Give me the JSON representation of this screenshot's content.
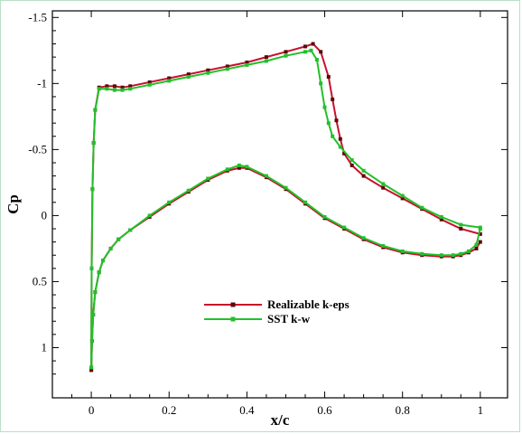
{
  "chart_data": {
    "type": "line",
    "xlabel": "x/c",
    "ylabel": "Cp",
    "xlim": [
      -0.1,
      1.07
    ],
    "ylim": [
      -1.55,
      1.38
    ],
    "y_inverted": true,
    "grid": false,
    "legend_position": "lower-center",
    "x_ticks": [
      0,
      0.2,
      0.4,
      0.6,
      0.8,
      1
    ],
    "x_tick_labels": [
      "0",
      "0.2",
      "0.4",
      "0.6",
      "0.8",
      "1"
    ],
    "y_ticks": [
      -1.5,
      -1,
      -0.5,
      0,
      0.5,
      1
    ],
    "y_tick_labels": [
      "-1.5",
      "-1",
      "-0.5",
      "0",
      "0.5",
      "1"
    ],
    "series": [
      {
        "name": "Realizable k-eps",
        "color": "#c8102e",
        "marker_color": "#5a0a0a",
        "upper": {
          "x": [
            0,
            0.001,
            0.003,
            0.006,
            0.01,
            0.02,
            0.04,
            0.06,
            0.08,
            0.1,
            0.15,
            0.2,
            0.25,
            0.3,
            0.35,
            0.4,
            0.45,
            0.5,
            0.55,
            0.57,
            0.59,
            0.61,
            0.62,
            0.63,
            0.64,
            0.65,
            0.67,
            0.7,
            0.75,
            0.8,
            0.85,
            0.9,
            0.95,
            1.0
          ],
          "y": [
            1.17,
            0.4,
            -0.2,
            -0.55,
            -0.8,
            -0.97,
            -0.98,
            -0.98,
            -0.97,
            -0.98,
            -1.01,
            -1.04,
            -1.07,
            -1.1,
            -1.13,
            -1.16,
            -1.2,
            -1.24,
            -1.28,
            -1.3,
            -1.24,
            -1.05,
            -0.88,
            -0.72,
            -0.58,
            -0.47,
            -0.38,
            -0.3,
            -0.21,
            -0.13,
            -0.05,
            0.03,
            0.1,
            0.14
          ]
        },
        "lower": {
          "x": [
            0,
            0.002,
            0.005,
            0.01,
            0.02,
            0.03,
            0.05,
            0.07,
            0.1,
            0.15,
            0.2,
            0.25,
            0.3,
            0.35,
            0.38,
            0.4,
            0.45,
            0.5,
            0.55,
            0.6,
            0.65,
            0.7,
            0.75,
            0.8,
            0.85,
            0.9,
            0.93,
            0.95,
            0.97,
            0.99,
            1.0
          ],
          "y": [
            1.17,
            0.95,
            0.75,
            0.58,
            0.43,
            0.34,
            0.25,
            0.18,
            0.11,
            0.01,
            -0.09,
            -0.18,
            -0.27,
            -0.34,
            -0.36,
            -0.36,
            -0.29,
            -0.2,
            -0.09,
            0.02,
            0.1,
            0.18,
            0.24,
            0.28,
            0.3,
            0.31,
            0.31,
            0.3,
            0.28,
            0.25,
            0.2
          ]
        }
      },
      {
        "name": "SST k-w",
        "color": "#22c02a",
        "marker_color": "#22c02a",
        "upper": {
          "x": [
            0,
            0.001,
            0.003,
            0.006,
            0.01,
            0.02,
            0.04,
            0.06,
            0.08,
            0.1,
            0.15,
            0.2,
            0.25,
            0.3,
            0.35,
            0.4,
            0.45,
            0.5,
            0.55,
            0.565,
            0.58,
            0.59,
            0.6,
            0.61,
            0.62,
            0.64,
            0.67,
            0.7,
            0.75,
            0.8,
            0.85,
            0.9,
            0.95,
            1.0
          ],
          "y": [
            1.15,
            0.4,
            -0.2,
            -0.55,
            -0.8,
            -0.96,
            -0.96,
            -0.95,
            -0.95,
            -0.96,
            -0.99,
            -1.02,
            -1.05,
            -1.08,
            -1.11,
            -1.14,
            -1.17,
            -1.21,
            -1.24,
            -1.25,
            -1.18,
            -1.0,
            -0.82,
            -0.7,
            -0.6,
            -0.52,
            -0.42,
            -0.34,
            -0.24,
            -0.15,
            -0.06,
            0.01,
            0.07,
            0.09
          ]
        },
        "lower": {
          "x": [
            0,
            0.002,
            0.005,
            0.01,
            0.02,
            0.03,
            0.05,
            0.07,
            0.1,
            0.15,
            0.2,
            0.25,
            0.3,
            0.35,
            0.38,
            0.4,
            0.45,
            0.5,
            0.55,
            0.6,
            0.65,
            0.7,
            0.75,
            0.8,
            0.85,
            0.9,
            0.93,
            0.95,
            0.97,
            0.99,
            1.0
          ],
          "y": [
            1.15,
            0.95,
            0.75,
            0.58,
            0.43,
            0.34,
            0.25,
            0.18,
            0.11,
            0.0,
            -0.1,
            -0.19,
            -0.28,
            -0.35,
            -0.38,
            -0.37,
            -0.3,
            -0.21,
            -0.1,
            0.01,
            0.09,
            0.17,
            0.23,
            0.27,
            0.29,
            0.3,
            0.3,
            0.29,
            0.27,
            0.22,
            0.1
          ]
        }
      }
    ]
  }
}
